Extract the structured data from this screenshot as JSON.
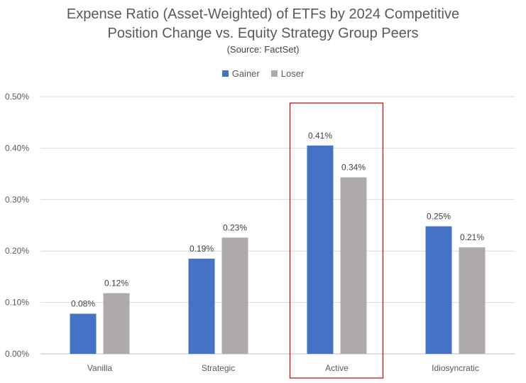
{
  "chart_data": {
    "type": "bar",
    "title_lines": [
      "Expense Ratio (Asset-Weighted) of ETFs by 2024 Competitive",
      "Position Change vs. Equity Strategy Group Peers"
    ],
    "subtitle": "(Source: FactSet)",
    "categories": [
      "Vanilla",
      "Strategic",
      "Active",
      "Idiosyncratic"
    ],
    "series": [
      {
        "name": "Gainer",
        "color": "#4472C4",
        "values": [
          0.078,
          0.185,
          0.405,
          0.248
        ],
        "labels": [
          "0.08%",
          "0.19%",
          "0.41%",
          "0.25%"
        ]
      },
      {
        "name": "Loser",
        "color": "#AEAAAA",
        "values": [
          0.118,
          0.226,
          0.343,
          0.207
        ],
        "labels": [
          "0.12%",
          "0.23%",
          "0.34%",
          "0.21%"
        ]
      }
    ],
    "y_ticks": [
      "0.00%",
      "0.10%",
      "0.20%",
      "0.30%",
      "0.40%",
      "0.50%"
    ],
    "ylim": [
      0,
      0.5
    ],
    "grid": true,
    "legend_position": "top",
    "highlight_category": "Active",
    "highlight_color": "#C00000"
  }
}
